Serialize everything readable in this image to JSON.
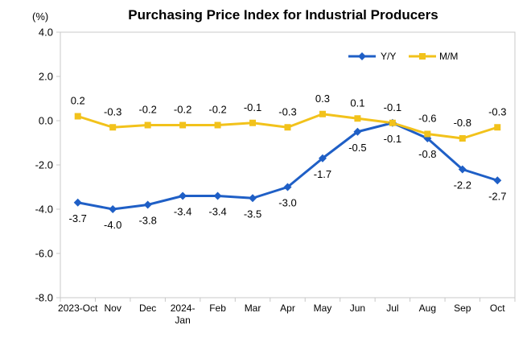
{
  "chart_data": {
    "type": "line",
    "title": "Purchasing Price Index for Industrial Producers",
    "unit_label": "(%)",
    "categories": [
      [
        "2023-Oct"
      ],
      [
        "Nov"
      ],
      [
        "Dec"
      ],
      [
        "2024-",
        "Jan"
      ],
      [
        "Feb"
      ],
      [
        "Mar"
      ],
      [
        "Apr"
      ],
      [
        "May"
      ],
      [
        "Jun"
      ],
      [
        "Jul"
      ],
      [
        "Aug"
      ],
      [
        "Sep"
      ],
      [
        "Oct"
      ]
    ],
    "ylim": [
      -8.0,
      4.0
    ],
    "yticks": [
      4.0,
      2.0,
      0.0,
      -2.0,
      -4.0,
      -6.0,
      -8.0
    ],
    "ytick_labels": [
      "4.0",
      "2.0",
      "0.0",
      "-2.0",
      "-4.0",
      "-6.0",
      "-8.0"
    ],
    "grid": false,
    "legend_position": "top-right",
    "series": [
      {
        "name": "Y/Y",
        "color": "#1f5fc6",
        "marker": "diamond",
        "label_position": "below",
        "values": [
          -3.7,
          -4.0,
          -3.8,
          -3.4,
          -3.4,
          -3.5,
          -3.0,
          -1.7,
          -0.5,
          -0.1,
          -0.8,
          -2.2,
          -2.7
        ],
        "labels": [
          "-3.7",
          "-4.0",
          "-3.8",
          "-3.4",
          "-3.4",
          "-3.5",
          "-3.0",
          "-1.7",
          "-0.5",
          "-0.1",
          "-0.8",
          "-2.2",
          "-2.7"
        ]
      },
      {
        "name": "M/M",
        "color": "#f2c21b",
        "marker": "square",
        "label_position": "above",
        "values": [
          0.2,
          -0.3,
          -0.2,
          -0.2,
          -0.2,
          -0.1,
          -0.3,
          0.3,
          0.1,
          -0.1,
          -0.6,
          -0.8,
          -0.3
        ],
        "labels": [
          "0.2",
          "-0.3",
          "-0.2",
          "-0.2",
          "-0.2",
          "-0.1",
          "-0.3",
          "0.3",
          "0.1",
          "-0.1",
          "-0.6",
          "-0.8",
          "-0.3"
        ]
      }
    ]
  }
}
